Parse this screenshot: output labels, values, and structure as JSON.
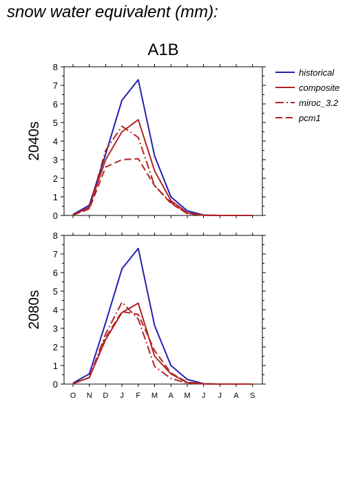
{
  "title": "snow water equivalent (mm):",
  "chart_data": {
    "type": "line",
    "title": "A1B",
    "categories": [
      "O",
      "N",
      "D",
      "J",
      "F",
      "M",
      "A",
      "M",
      "J",
      "J",
      "A",
      "S"
    ],
    "ylim": [
      0,
      8
    ],
    "yticks": [
      0,
      1,
      2,
      3,
      4,
      5,
      6,
      7,
      8
    ],
    "legend": {
      "placement": "right",
      "entries": [
        {
          "name": "historical",
          "color": "#1f1fb4",
          "dash": "solid"
        },
        {
          "name": "composite",
          "color": "#b22222",
          "dash": "solid"
        },
        {
          "name": "miroc_3.2",
          "color": "#b22222",
          "dash": "dashdot"
        },
        {
          "name": "pcm1",
          "color": "#b22222",
          "dash": "dashed"
        }
      ]
    },
    "panels": [
      {
        "label": "2040s",
        "series": [
          {
            "name": "historical",
            "values": [
              0.05,
              0.55,
              3.3,
              6.2,
              7.3,
              3.2,
              1.0,
              0.25,
              0.02,
              0,
              0,
              0
            ]
          },
          {
            "name": "composite",
            "values": [
              0.02,
              0.45,
              3.0,
              4.5,
              5.15,
              2.4,
              0.8,
              0.15,
              0.01,
              0,
              0,
              0
            ]
          },
          {
            "name": "miroc_3.2",
            "values": [
              0.02,
              0.4,
              3.5,
              4.8,
              4.2,
              1.6,
              0.7,
              0.1,
              0.01,
              0,
              0,
              0
            ]
          },
          {
            "name": "pcm1",
            "values": [
              0.02,
              0.35,
              2.6,
              3.0,
              3.05,
              1.6,
              0.65,
              0.1,
              0.01,
              0,
              0,
              0
            ]
          }
        ]
      },
      {
        "label": "2080s",
        "series": [
          {
            "name": "historical",
            "values": [
              0.05,
              0.55,
              3.3,
              6.2,
              7.3,
              3.15,
              1.0,
              0.25,
              0.02,
              0,
              0,
              0
            ]
          },
          {
            "name": "composite",
            "values": [
              0.02,
              0.35,
              2.4,
              3.85,
              4.35,
              1.5,
              0.55,
              0.08,
              0.01,
              0,
              0,
              0
            ]
          },
          {
            "name": "miroc_3.2",
            "values": [
              0.02,
              0.35,
              2.7,
              4.4,
              3.5,
              0.95,
              0.3,
              0.05,
              0.01,
              0,
              0,
              0
            ]
          },
          {
            "name": "pcm1",
            "values": [
              0.02,
              0.35,
              2.5,
              3.9,
              3.75,
              1.8,
              0.6,
              0.1,
              0.01,
              0,
              0,
              0
            ]
          }
        ]
      }
    ]
  }
}
